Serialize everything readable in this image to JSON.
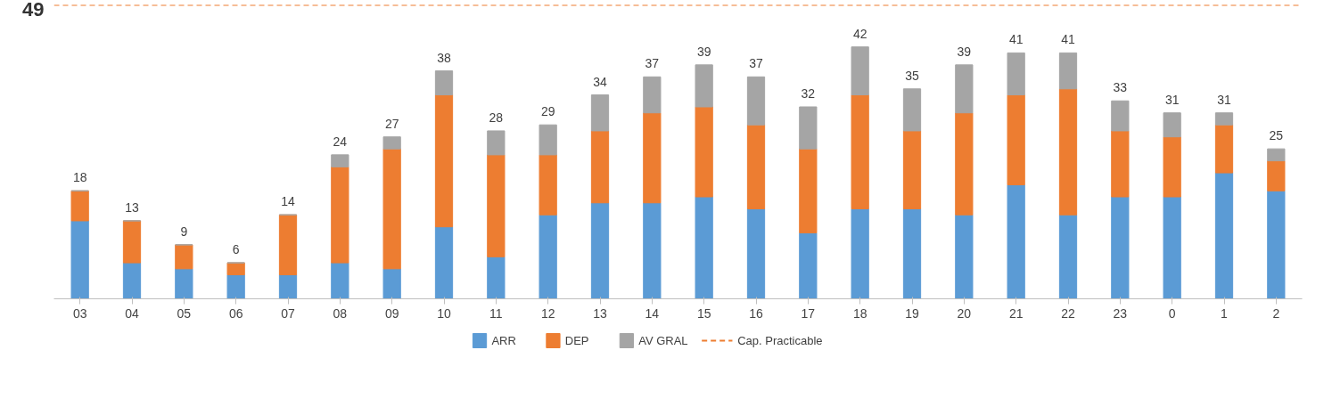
{
  "chart_data": {
    "type": "bar",
    "stacked": true,
    "categories": [
      "03",
      "04",
      "05",
      "06",
      "07",
      "08",
      "09",
      "10",
      "11",
      "12",
      "13",
      "14",
      "15",
      "16",
      "17",
      "18",
      "19",
      "20",
      "21",
      "22",
      "23",
      "0",
      "1",
      "2"
    ],
    "series": [
      {
        "name": "ARR",
        "color": "#5b9bd5",
        "values": [
          13,
          6,
          5,
          4,
          4,
          6,
          5,
          12,
          7,
          14,
          16,
          16,
          17,
          15,
          11,
          15,
          15,
          14,
          19,
          14,
          17,
          17,
          21,
          18
        ]
      },
      {
        "name": "DEP",
        "color": "#ed7d31",
        "values": [
          5,
          7,
          4,
          2,
          10,
          16,
          20,
          22,
          17,
          10,
          12,
          15,
          15,
          14,
          14,
          19,
          13,
          17,
          15,
          21,
          11,
          10,
          8,
          5
        ]
      },
      {
        "name": "AV GRAL",
        "color": "#a5a5a5",
        "values": [
          0,
          0,
          0,
          0,
          0,
          2,
          2,
          4,
          4,
          5,
          6,
          6,
          7,
          8,
          7,
          8,
          7,
          8,
          7,
          6,
          5,
          4,
          2,
          2
        ]
      }
    ],
    "totals": [
      "18",
      "13",
      "9",
      "6",
      "14",
      "24",
      "27",
      "38",
      "28",
      "29",
      "34",
      "37",
      "39",
      "37",
      "32",
      "42",
      "35",
      "39",
      "41",
      "41",
      "33",
      "31",
      "31",
      "25"
    ],
    "ref_lines": [
      {
        "axis": "y",
        "value": 49,
        "label": "Cap. Practicable",
        "color": "#ed7d31",
        "line_style": "dashed"
      }
    ],
    "ylim": [
      0,
      49
    ],
    "yticks": [
      49
    ],
    "grid": false,
    "legend": "bottom"
  }
}
